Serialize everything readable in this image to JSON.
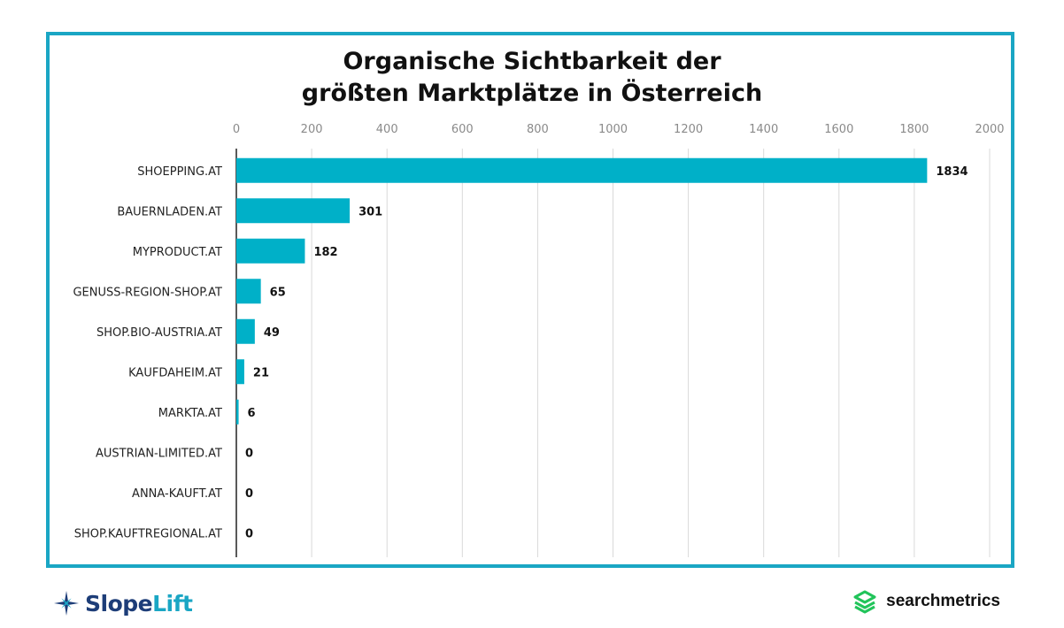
{
  "chart_data": {
    "type": "bar",
    "orientation": "horizontal",
    "title_line1": "Organische Sichtbarkeit der",
    "title_line2": "größten Marktplätze in Österreich",
    "categories": [
      "SHOEPPING.AT",
      "BAUERNLADEN.AT",
      "MYPRODUCT.AT",
      "GENUSS-REGION-SHOP.AT",
      "SHOP.BIO-AUSTRIA.AT",
      "KAUFDAHEIM.AT",
      "MARKTA.AT",
      "AUSTRIAN-LIMITED.AT",
      "ANNA-KAUFT.AT",
      "SHOP.KAUFTREGIONAL.AT"
    ],
    "values": [
      1834,
      301,
      182,
      65,
      49,
      21,
      6,
      0,
      0,
      0
    ],
    "value_labels": [
      "1834",
      "301",
      "182",
      "65",
      "49",
      "21",
      "6",
      "0",
      "0",
      "0"
    ],
    "xlim": [
      0,
      2000
    ],
    "xticks": [
      "0",
      "200",
      "400",
      "600",
      "800",
      "1000",
      "1200",
      "1400",
      "1600",
      "1800",
      "2000"
    ],
    "axis_position": "top",
    "grid": true,
    "bar_color": "#00b0c8"
  },
  "branding": {
    "left_logo_part1": "Slope",
    "left_logo_part2": "Lift",
    "right_logo": "searchmetrics",
    "frame_color": "#1aa6c4"
  }
}
